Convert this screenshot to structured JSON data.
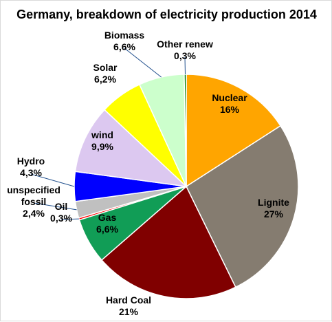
{
  "chart_data": {
    "type": "pie",
    "title": "Germany, breakdown of electricity production 2014",
    "slices": [
      {
        "label": "Nuclear",
        "pct_label": "16%",
        "value": 16,
        "color": "#FFA500",
        "label_color": "#000000"
      },
      {
        "label": "Lignite",
        "pct_label": "27%",
        "value": 27,
        "color": "#857C70",
        "label_color": "#000000"
      },
      {
        "label": "Hard Coal",
        "pct_label": "21%",
        "value": 21,
        "color": "#800000",
        "label_color": "#000000"
      },
      {
        "label": "Gas",
        "pct_label": "6,6%",
        "value": 6.6,
        "color": "#119D56",
        "label_color": "#000000"
      },
      {
        "label": "Oil",
        "pct_label": "0,3%",
        "value": 0.3,
        "color": "#FF0000",
        "label_color": "#000000"
      },
      {
        "label": "unspecified fossil",
        "pct_label": "2,4%",
        "value": 2.4,
        "color": "#C0C0C0",
        "label_color": "#000000"
      },
      {
        "label": "Hydro",
        "pct_label": "4,3%",
        "value": 4.3,
        "color": "#0000FF",
        "label_color": "#000000"
      },
      {
        "label": "wind",
        "pct_label": "9,9%",
        "value": 9.9,
        "color": "#DCC8F0",
        "label_color": "#000000"
      },
      {
        "label": "Solar",
        "pct_label": "6,2%",
        "value": 6.2,
        "color": "#FFFF00",
        "label_color": "#000000"
      },
      {
        "label": "Biomass",
        "pct_label": "6,6%",
        "value": 6.6,
        "color": "#CCFFCC",
        "label_color": "#000000"
      },
      {
        "label": "Other renew",
        "pct_label": "0,3%",
        "value": 0.3,
        "color": "#008000",
        "label_color": "#000000"
      }
    ]
  }
}
